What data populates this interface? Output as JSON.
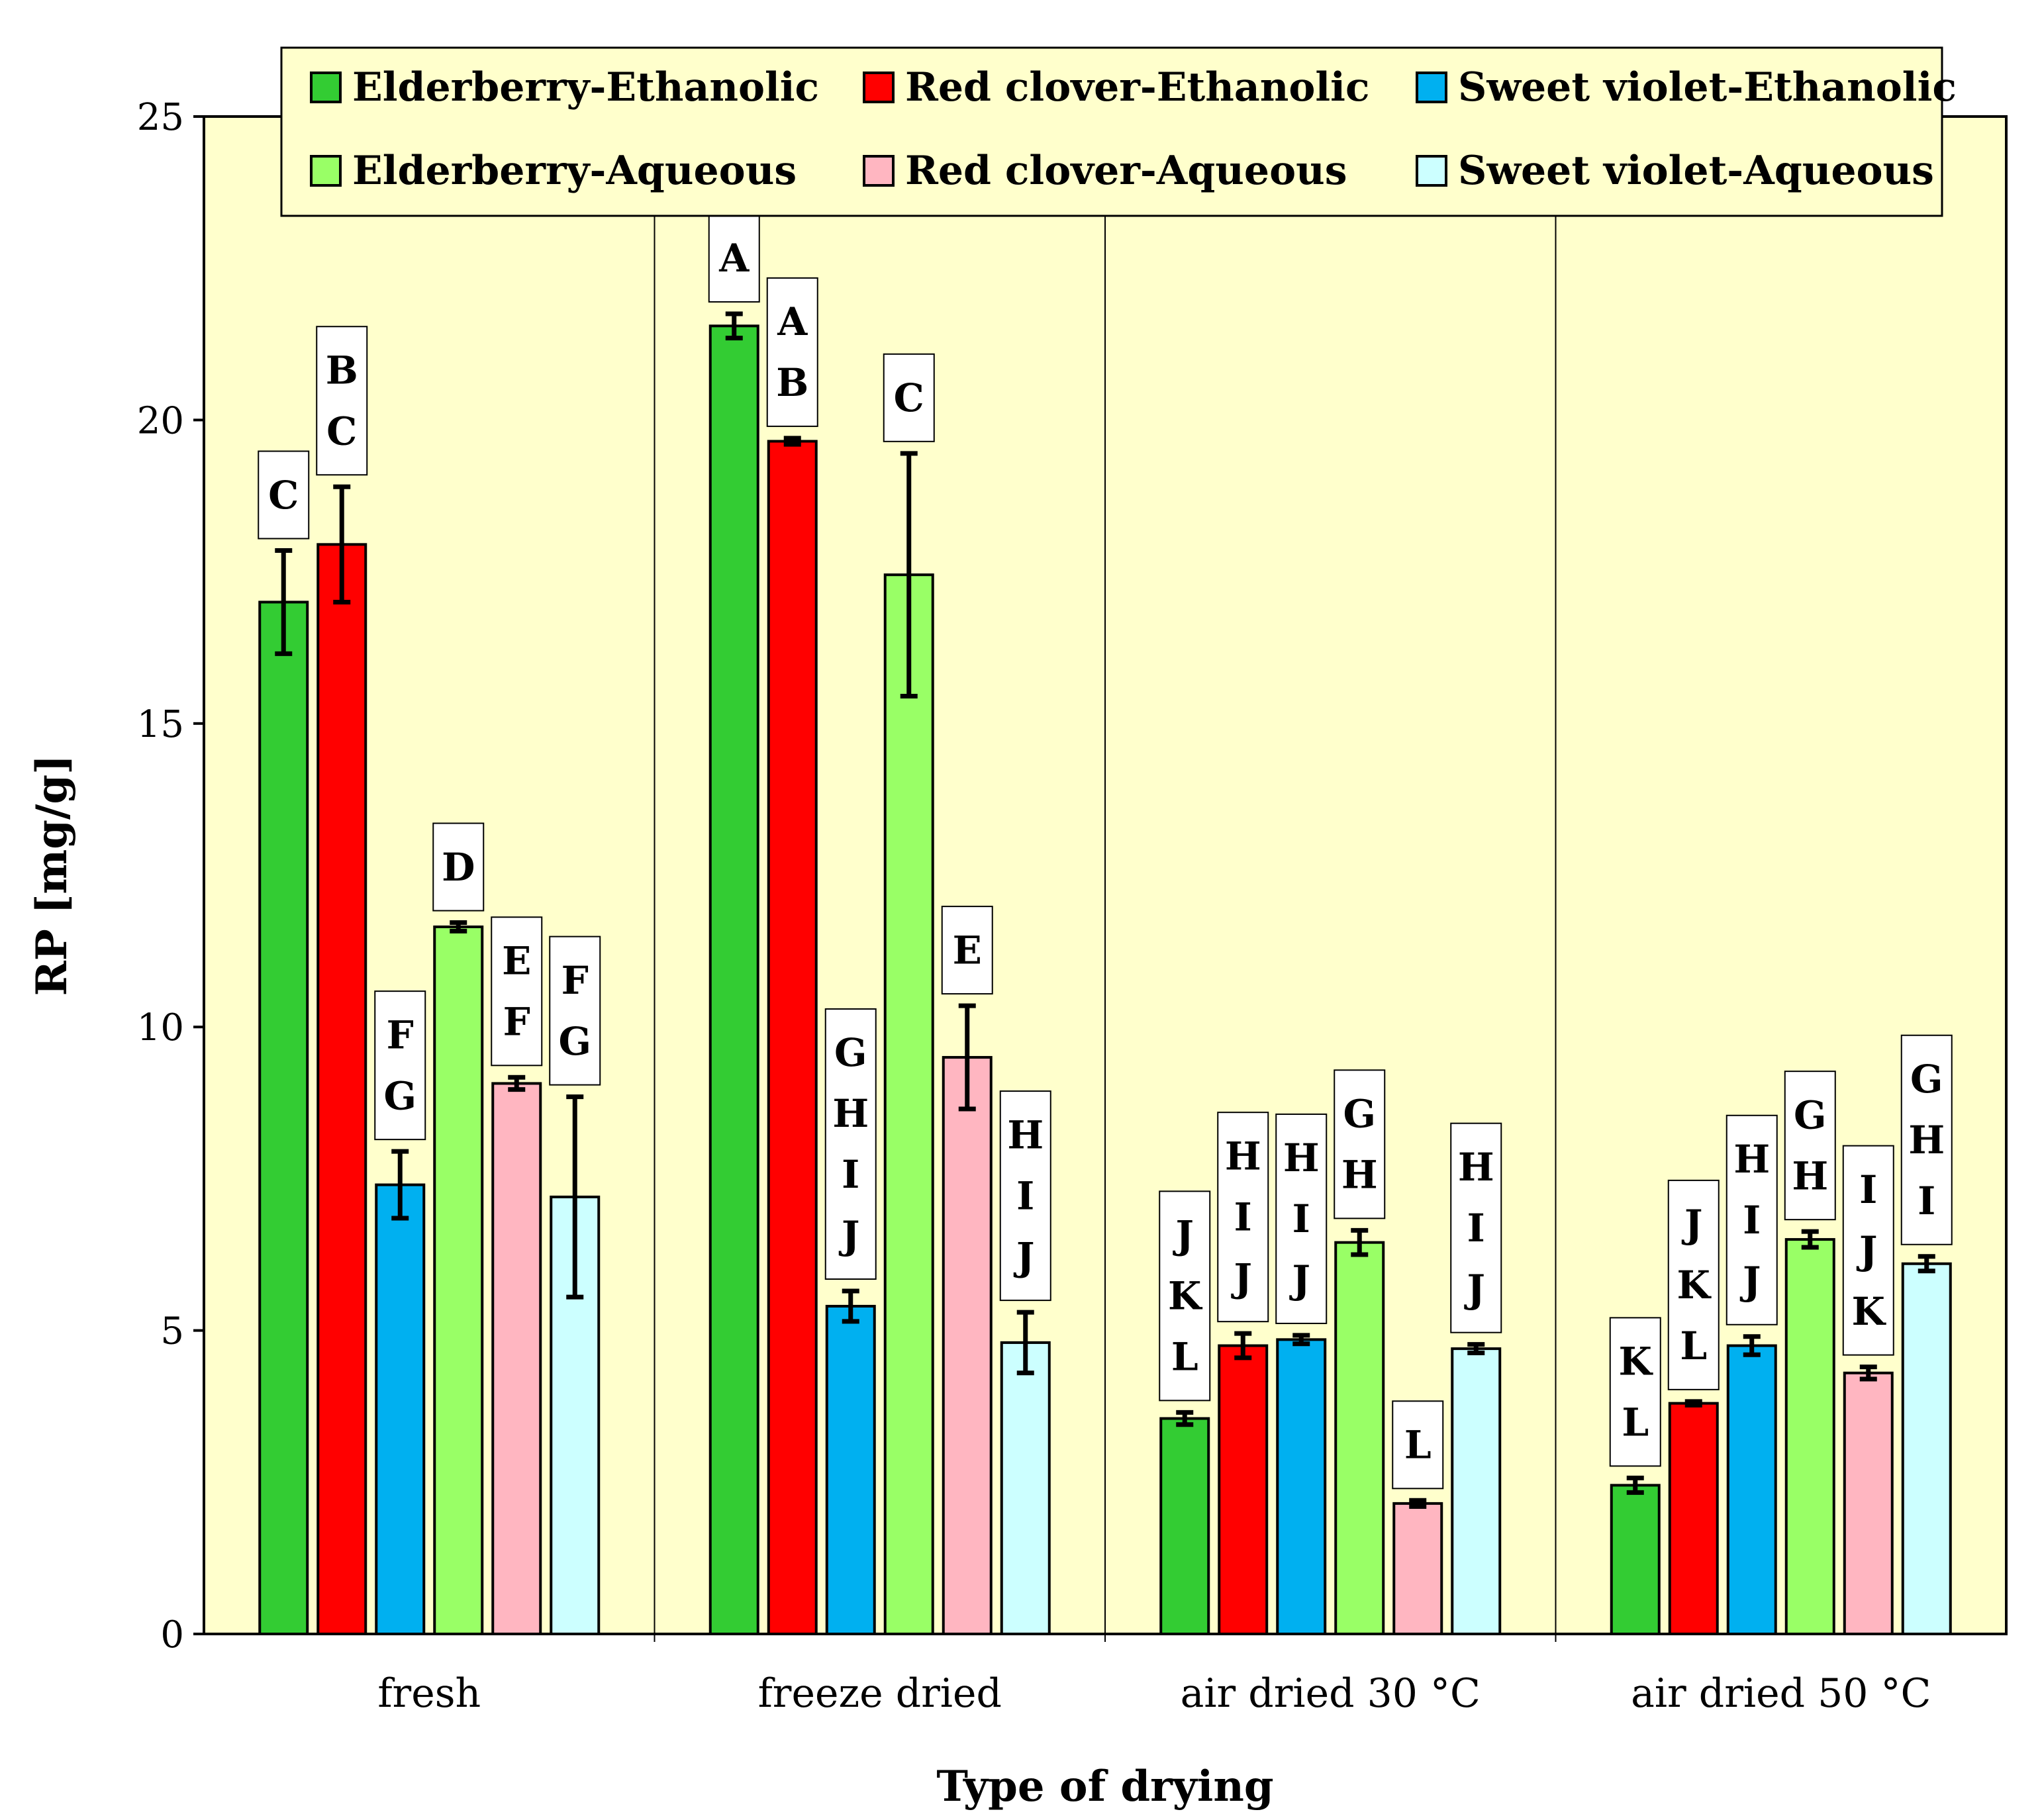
{
  "chart_data": {
    "type": "bar",
    "title": "",
    "xlabel": "Type of drying",
    "ylabel": "RP [mg/g]",
    "ylim": [
      0,
      25
    ],
    "yticks": [
      0,
      5,
      10,
      15,
      20,
      25
    ],
    "categories": [
      "fresh",
      "freeze dried",
      "air dried 30 °C",
      "air dried 50 °C"
    ],
    "legend_position": "top",
    "grid": false,
    "series": [
      {
        "name": "Elderberry-Ethanolic",
        "color": "#33cc33",
        "values": [
          17.0,
          21.55,
          3.55,
          2.45
        ],
        "errors": [
          0.85,
          0.2,
          0.1,
          0.12
        ],
        "letters": [
          [
            "C"
          ],
          [
            "A"
          ],
          [
            "J",
            "K",
            "L"
          ],
          [
            "K",
            "L"
          ]
        ]
      },
      {
        "name": "Red clover-Ethanolic",
        "color": "#ff0000",
        "values": [
          17.95,
          19.65,
          4.75,
          3.8
        ],
        "errors": [
          0.95,
          0.05,
          0.2,
          0.03
        ],
        "letters": [
          [
            "B",
            "C"
          ],
          [
            "A",
            "B"
          ],
          [
            "H",
            "I",
            "J"
          ],
          [
            "J",
            "K",
            "L"
          ]
        ]
      },
      {
        "name": "Sweet violet-Ethanolic",
        "color": "#00b0f0",
        "values": [
          7.4,
          5.4,
          4.85,
          4.75
        ],
        "errors": [
          0.55,
          0.25,
          0.07,
          0.15
        ],
        "letters": [
          [
            "F",
            "G"
          ],
          [
            "G",
            "H",
            "I",
            "J"
          ],
          [
            "H",
            "I",
            "J"
          ],
          [
            "H",
            "I",
            "J"
          ]
        ]
      },
      {
        "name": "Elderberry-Aqueous",
        "color": "#99ff66",
        "values": [
          11.65,
          17.45,
          6.45,
          6.5
        ],
        "errors": [
          0.07,
          2.0,
          0.2,
          0.13
        ],
        "letters": [
          [
            "D"
          ],
          [
            "C"
          ],
          [
            "G",
            "H"
          ],
          [
            "G",
            "H"
          ]
        ]
      },
      {
        "name": "Red clover-Aqueous",
        "color": "#ffb6c1",
        "values": [
          9.07,
          9.5,
          2.15,
          4.3
        ],
        "errors": [
          0.1,
          0.85,
          0.05,
          0.1
        ],
        "letters": [
          [
            "E",
            "F"
          ],
          [
            "E"
          ],
          [
            "L"
          ],
          [
            "I",
            "J",
            "K"
          ]
        ]
      },
      {
        "name": "Sweet violet-Aqueous",
        "color": "#ccffff",
        "values": [
          7.2,
          4.8,
          4.7,
          6.1
        ],
        "errors": [
          1.65,
          0.5,
          0.07,
          0.12
        ],
        "letters": [
          [
            "F",
            "G"
          ],
          [
            "H",
            "I",
            "J"
          ],
          [
            "H",
            "I",
            "J"
          ],
          [
            "G",
            "H",
            "I"
          ]
        ]
      }
    ],
    "plot_background": "#ffffcc",
    "legend_background": "#ffffcc"
  }
}
